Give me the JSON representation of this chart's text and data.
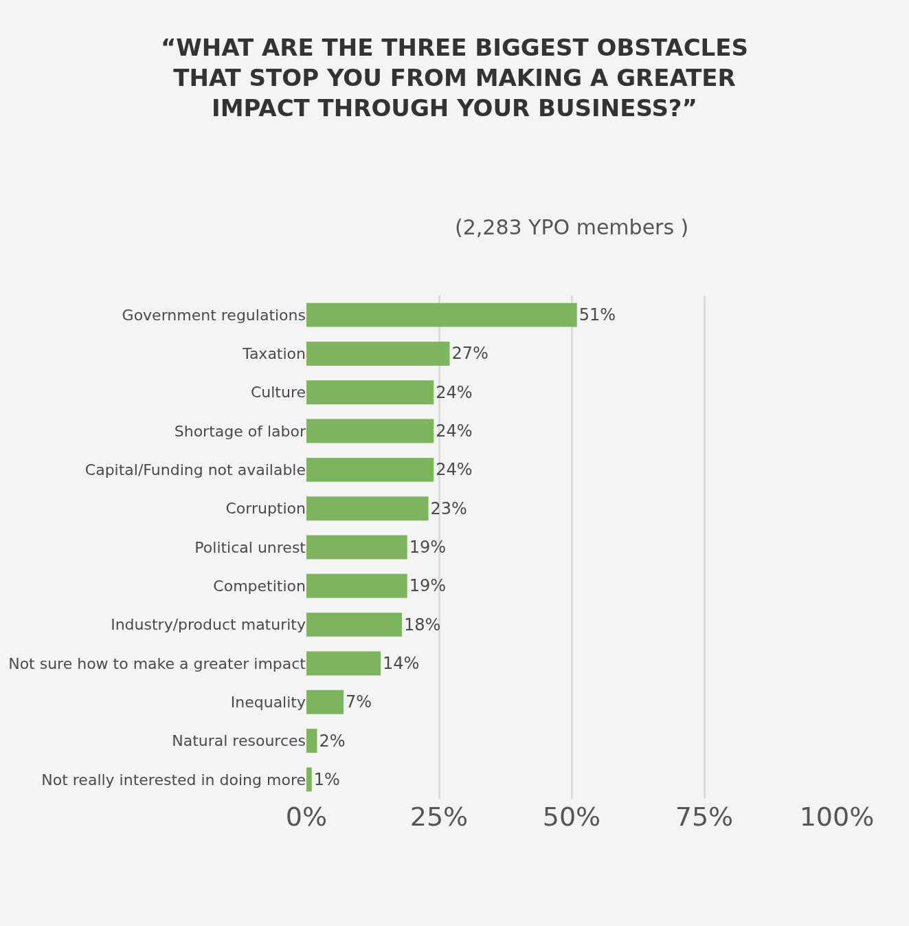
{
  "chart_data": {
    "type": "bar",
    "orientation": "horizontal",
    "title": "“WHAT ARE THE THREE BIGGEST OBSTACLES\nTHAT STOP YOU FROM MAKING A GREATER\nIMPACT THROUGH YOUR BUSINESS?”",
    "subtitle": "(2,283 YPO members )",
    "categories": [
      "Government regulations",
      "Taxation",
      "Culture",
      "Shortage of labor",
      "Capital/Funding not available",
      "Corruption",
      "Political unrest",
      "Competition",
      "Industry/product maturity",
      "Not sure how to make a greater impact",
      "Inequality",
      "Natural resources",
      "Not really interested in doing more"
    ],
    "values": [
      51,
      27,
      24,
      24,
      24,
      23,
      19,
      19,
      18,
      14,
      7,
      2,
      1
    ],
    "value_labels": [
      "51%",
      "27%",
      "24%",
      "24%",
      "24%",
      "23%",
      "19%",
      "19%",
      "18%",
      "14%",
      "7%",
      "2%",
      "1%"
    ],
    "color": "#7cb55e",
    "xlim": [
      0,
      100
    ],
    "xticks": [
      {
        "value": 0,
        "label": "0%"
      },
      {
        "value": 25,
        "label": "25%"
      },
      {
        "value": 50,
        "label": "50%"
      },
      {
        "value": 75,
        "label": "75%"
      },
      {
        "value": 100,
        "label": "100%"
      }
    ],
    "grid": "x"
  }
}
